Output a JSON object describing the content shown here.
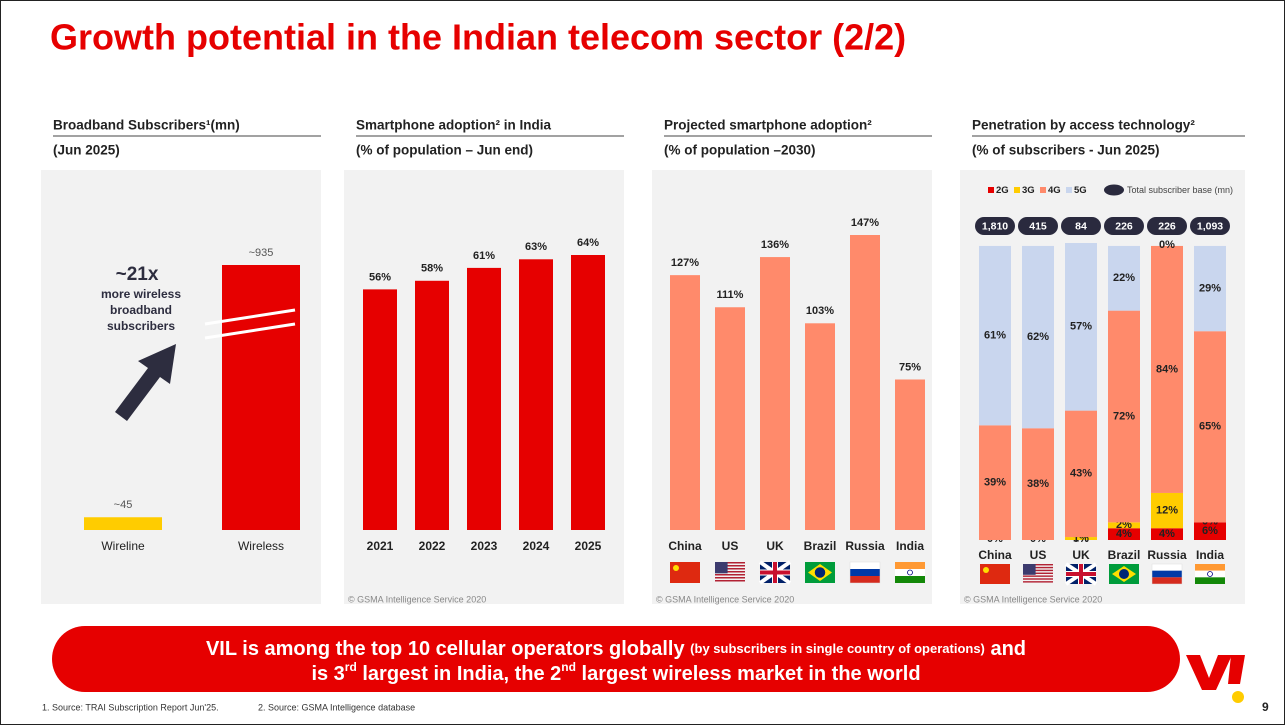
{
  "title": "Growth potential in the Indian telecom sector (2/2)",
  "chart_data": [
    {
      "type": "bar",
      "title": "Broadband Subscribers¹(mn)",
      "subtitle": "(Jun 2025)",
      "categories": [
        "Wireline",
        "Wireless"
      ],
      "values": [
        45,
        935
      ],
      "value_labels": [
        "~45",
        "~935"
      ],
      "colors": [
        "#ffcc00",
        "#e60000"
      ],
      "annotation": {
        "title": "~21x",
        "lines": [
          "more wireless",
          "broadband",
          "subscribers"
        ]
      }
    },
    {
      "type": "bar",
      "title": "Smartphone adoption² in India",
      "subtitle": "(% of population – Jun end)",
      "categories": [
        "2021",
        "2022",
        "2023",
        "2024",
        "2025"
      ],
      "values": [
        56,
        58,
        61,
        63,
        64
      ],
      "value_labels": [
        "56%",
        "58%",
        "61%",
        "63%",
        "64%"
      ],
      "color": "#e60000",
      "source": "© GSMA Intelligence Service 2020"
    },
    {
      "type": "bar",
      "title": "Projected smartphone adoption²",
      "subtitle": "(% of population –2030)",
      "categories": [
        "China",
        "US",
        "UK",
        "Brazil",
        "Russia",
        "India"
      ],
      "values": [
        127,
        111,
        136,
        103,
        147,
        75
      ],
      "value_labels": [
        "127%",
        "111%",
        "136%",
        "103%",
        "147%",
        "75%"
      ],
      "color": "#ff8a6b",
      "source": "© GSMA Intelligence Service 2020"
    },
    {
      "type": "stacked_bar",
      "title": "Penetration by access technology²",
      "subtitle": "(% of subscribers - Jun 2025)",
      "categories": [
        "China",
        "US",
        "UK",
        "Brazil",
        "Russia",
        "India"
      ],
      "series": [
        {
          "name": "2G",
          "color": "#e60000",
          "values": [
            0,
            0,
            0,
            4,
            4,
            6
          ],
          "value_labels": [
            "0%",
            "0%",
            "0%",
            "4%",
            "4%",
            "6%"
          ]
        },
        {
          "name": "3G",
          "color": "#ffcc00",
          "values": [
            0,
            0,
            1,
            2,
            12,
            0
          ],
          "value_labels": [
            null,
            null,
            "1%",
            "2%",
            "12%",
            "0%"
          ]
        },
        {
          "name": "4G",
          "color": "#ff8a6b",
          "values": [
            39,
            38,
            43,
            72,
            84,
            65
          ],
          "value_labels": [
            "39%",
            "38%",
            "43%",
            "72%",
            "84%",
            "65%"
          ]
        },
        {
          "name": "5G",
          "color": "#c9d6ee",
          "values": [
            61,
            62,
            57,
            22,
            0,
            29
          ],
          "value_labels": [
            "61%",
            "62%",
            "57%",
            "22%",
            "0%",
            "29%"
          ]
        }
      ],
      "totals": {
        "name": "Total subscriber base (mn)",
        "values": [
          1810,
          415,
          84,
          226,
          226,
          1093
        ],
        "value_labels": [
          "1,810",
          "415",
          "84",
          "226",
          "226",
          "1,093"
        ]
      },
      "source": "© GSMA Intelligence Service 2020"
    }
  ],
  "banner": {
    "line1": [
      "VIL is among the top 10 cellular operators globally ",
      "(by subscribers in single country of operations)",
      " and"
    ],
    "line2": [
      "is 3",
      "rd",
      " largest in India, the 2",
      "nd",
      " largest wireless market in the world"
    ]
  },
  "footnotes": [
    "1. Source: TRAI Subscription Report Jun'25.",
    "2. Source: GSMA Intelligence database"
  ],
  "page_number": "9"
}
